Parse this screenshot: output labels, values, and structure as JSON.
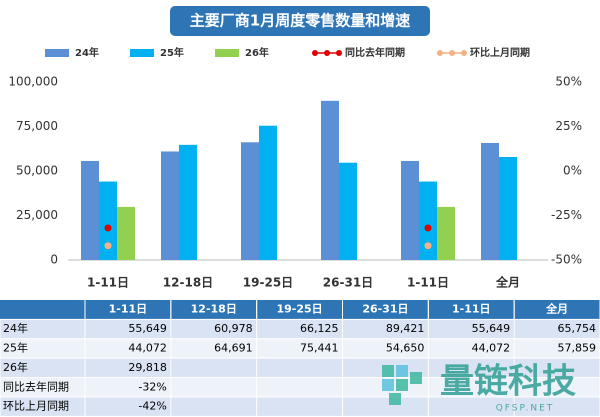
{
  "chart_data": {
    "type": "bar",
    "title": "主要厂商1月周度零售数量和增速",
    "categories": [
      "1-11日",
      "12-18日",
      "19-25日",
      "26-31日",
      "1-11日",
      "全月"
    ],
    "series": [
      {
        "name": "24年",
        "color": "#5b8fd6",
        "values": [
          55649,
          60978,
          66125,
          89421,
          55649,
          65754
        ]
      },
      {
        "name": "25年",
        "color": "#00b0f0",
        "values": [
          44072,
          64691,
          75441,
          54650,
          44072,
          57859
        ]
      },
      {
        "name": "26年",
        "color": "#92d050",
        "values": [
          29818,
          null,
          null,
          null,
          29818,
          null
        ]
      },
      {
        "name": "同比去年同期",
        "color": "#e00000",
        "type": "dot",
        "axis": "y2",
        "values": [
          -32,
          null,
          null,
          null,
          -32,
          null
        ]
      },
      {
        "name": "环比上月同期",
        "color": "#f4b183",
        "type": "dot",
        "axis": "y2",
        "values": [
          -42,
          null,
          null,
          null,
          -42,
          null
        ]
      }
    ],
    "ylim": [
      0,
      100000
    ],
    "yticks": [
      {
        "value": 0,
        "label": "0"
      },
      {
        "value": 25000,
        "label": "25,000"
      },
      {
        "value": 50000,
        "label": "50,000"
      },
      {
        "value": 75000,
        "label": "75,000"
      },
      {
        "value": 100000,
        "label": "100,000"
      }
    ],
    "y2lim": [
      -50,
      50
    ],
    "y2ticks": [
      {
        "value": -50,
        "label": "-50%"
      },
      {
        "value": -25,
        "label": "-25%"
      },
      {
        "value": 0,
        "label": "0%"
      },
      {
        "value": 25,
        "label": "25%"
      },
      {
        "value": 50,
        "label": "50%"
      }
    ],
    "legend": "top"
  },
  "table": {
    "columns": [
      "1-11日",
      "12-18日",
      "19-25日",
      "26-31日",
      "1-11日",
      "全月"
    ],
    "rows": [
      {
        "label": "24年",
        "cells": [
          "55,649",
          "60,978",
          "66,125",
          "89,421",
          "55,649",
          "65,754"
        ]
      },
      {
        "label": "25年",
        "cells": [
          "44,072",
          "64,691",
          "75,441",
          "54,650",
          "44,072",
          "57,859"
        ]
      },
      {
        "label": "26年",
        "cells": [
          "29,818",
          null,
          null,
          null,
          null,
          null
        ]
      },
      {
        "label": "同比去年同期",
        "cells": [
          "-32%",
          null,
          null,
          null,
          null,
          null
        ]
      },
      {
        "label": "环比上月同期",
        "cells": [
          "-42%",
          null,
          null,
          null,
          null,
          null
        ]
      }
    ]
  },
  "watermark": {
    "name": "量链科技",
    "site": "QFSP.NET"
  }
}
